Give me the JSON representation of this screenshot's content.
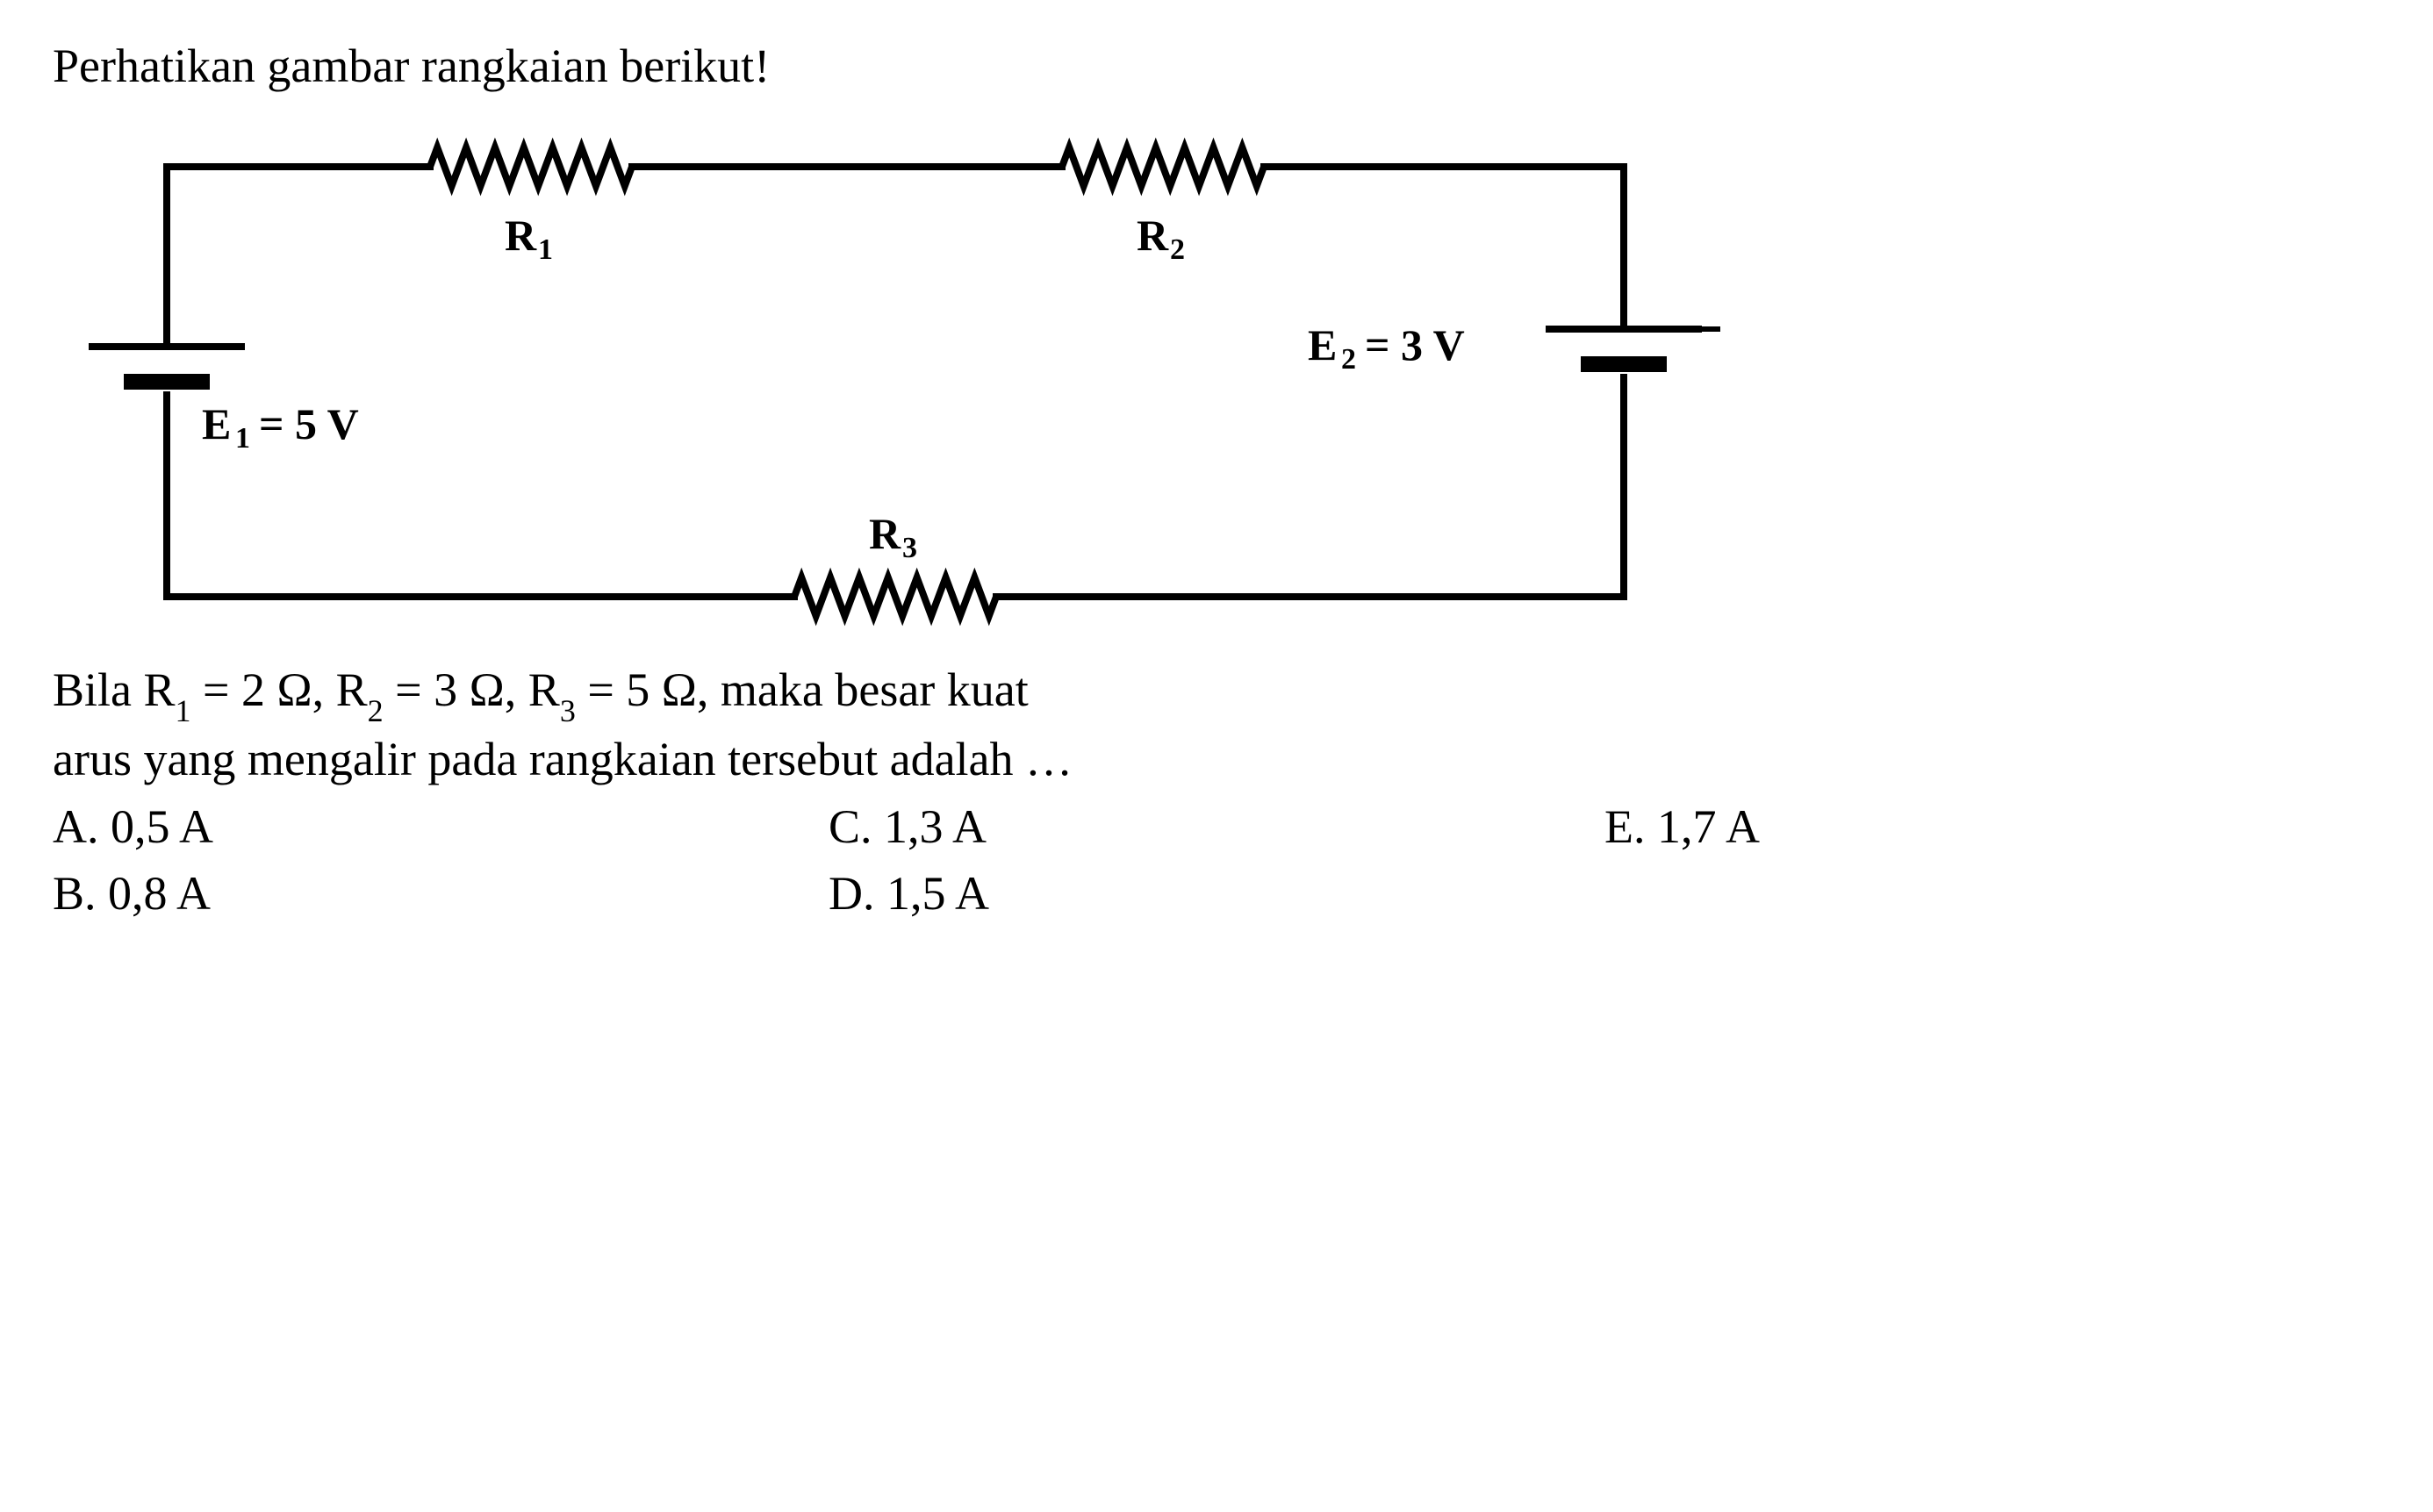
{
  "question_prompt": "Perhatikan gambar rangkaian berikut!",
  "circuit": {
    "type": "circuit-diagram",
    "background_color": "#ffffff",
    "stroke_color": "#000000",
    "wire_width": 8,
    "resistor": {
      "teeth": 7,
      "amplitude": 22,
      "length": 230
    },
    "components": {
      "R1": {
        "label": "R",
        "sub": "1"
      },
      "R2": {
        "label": "R",
        "sub": "2"
      },
      "R3": {
        "label": "R",
        "sub": "3"
      },
      "E1": {
        "label": "E",
        "sub": "1",
        "value": "5",
        "unit": "V"
      },
      "E2": {
        "label": "E",
        "sub": "2",
        "value": "3",
        "unit": "V"
      }
    },
    "label_fontsize": 50,
    "label_sub_fontsize": 34,
    "label_font_weight": "bold"
  },
  "given": {
    "prefix": "Bila ",
    "R1": {
      "sym": "R",
      "sub": "1",
      "eq": "=",
      "val": "2",
      "unit": "Ω"
    },
    "R2": {
      "sym": "R",
      "sub": "2",
      "eq": "=",
      "val": "3",
      "unit": "Ω"
    },
    "R3": {
      "sym": "R",
      "sub": "3",
      "eq": "=",
      "val": "5",
      "unit": "Ω"
    },
    "tail": ", maka besar kuat",
    "line2": "arus yang mengalir pada rangkaian tersebut adalah …"
  },
  "options": {
    "A": "A. 0,5 A",
    "B": "B. 0,8 A",
    "C": "C. 1,3 A",
    "D": "D. 1,5 A",
    "E": "E. 1,7 A"
  }
}
